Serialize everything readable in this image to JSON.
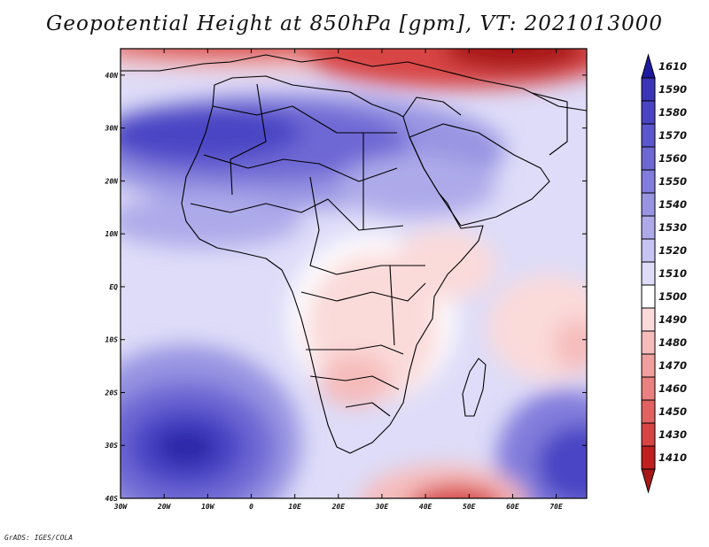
{
  "title": "Geopotential Height at 850hPa [gpm], VT: 2021013000",
  "footer": "GrADS: IGES/COLA",
  "map": {
    "variable": "Geopotential Height",
    "level": "850hPa",
    "units": "gpm",
    "valid_time": "2021013000",
    "lon_range": [
      -30,
      77
    ],
    "lat_range": [
      -40,
      45
    ],
    "lon_ticks": [
      {
        "value": -30,
        "label": "30W"
      },
      {
        "value": -20,
        "label": "20W"
      },
      {
        "value": -10,
        "label": "10W"
      },
      {
        "value": 0,
        "label": "0"
      },
      {
        "value": 10,
        "label": "10E"
      },
      {
        "value": 20,
        "label": "20E"
      },
      {
        "value": 30,
        "label": "30E"
      },
      {
        "value": 40,
        "label": "40E"
      },
      {
        "value": 50,
        "label": "50E"
      },
      {
        "value": 60,
        "label": "60E"
      },
      {
        "value": 70,
        "label": "70E"
      }
    ],
    "lat_ticks": [
      {
        "value": 40,
        "label": "40N"
      },
      {
        "value": 30,
        "label": "30N"
      },
      {
        "value": 20,
        "label": "20N"
      },
      {
        "value": 10,
        "label": "10N"
      },
      {
        "value": 0,
        "label": "EQ"
      },
      {
        "value": -10,
        "label": "10S"
      },
      {
        "value": -20,
        "label": "20S"
      },
      {
        "value": -30,
        "label": "30S"
      },
      {
        "value": -40,
        "label": "40S"
      }
    ]
  },
  "colorbar": {
    "labels": [
      "1610",
      "1590",
      "1580",
      "1570",
      "1560",
      "1550",
      "1540",
      "1530",
      "1520",
      "1510",
      "1500",
      "1490",
      "1480",
      "1470",
      "1460",
      "1450",
      "1430",
      "1410"
    ],
    "colors": [
      "#1e1aa0",
      "#3a34b8",
      "#4a44c4",
      "#5c56cc",
      "#6e68d4",
      "#827ddc",
      "#9894e2",
      "#aeaaea",
      "#c6c4f2",
      "#dedcf8",
      "#ffffff",
      "#fbdada",
      "#f6bcbc",
      "#f19e9e",
      "#ea8080",
      "#e26262",
      "#d84444",
      "#c02020",
      "#a81818"
    ]
  }
}
